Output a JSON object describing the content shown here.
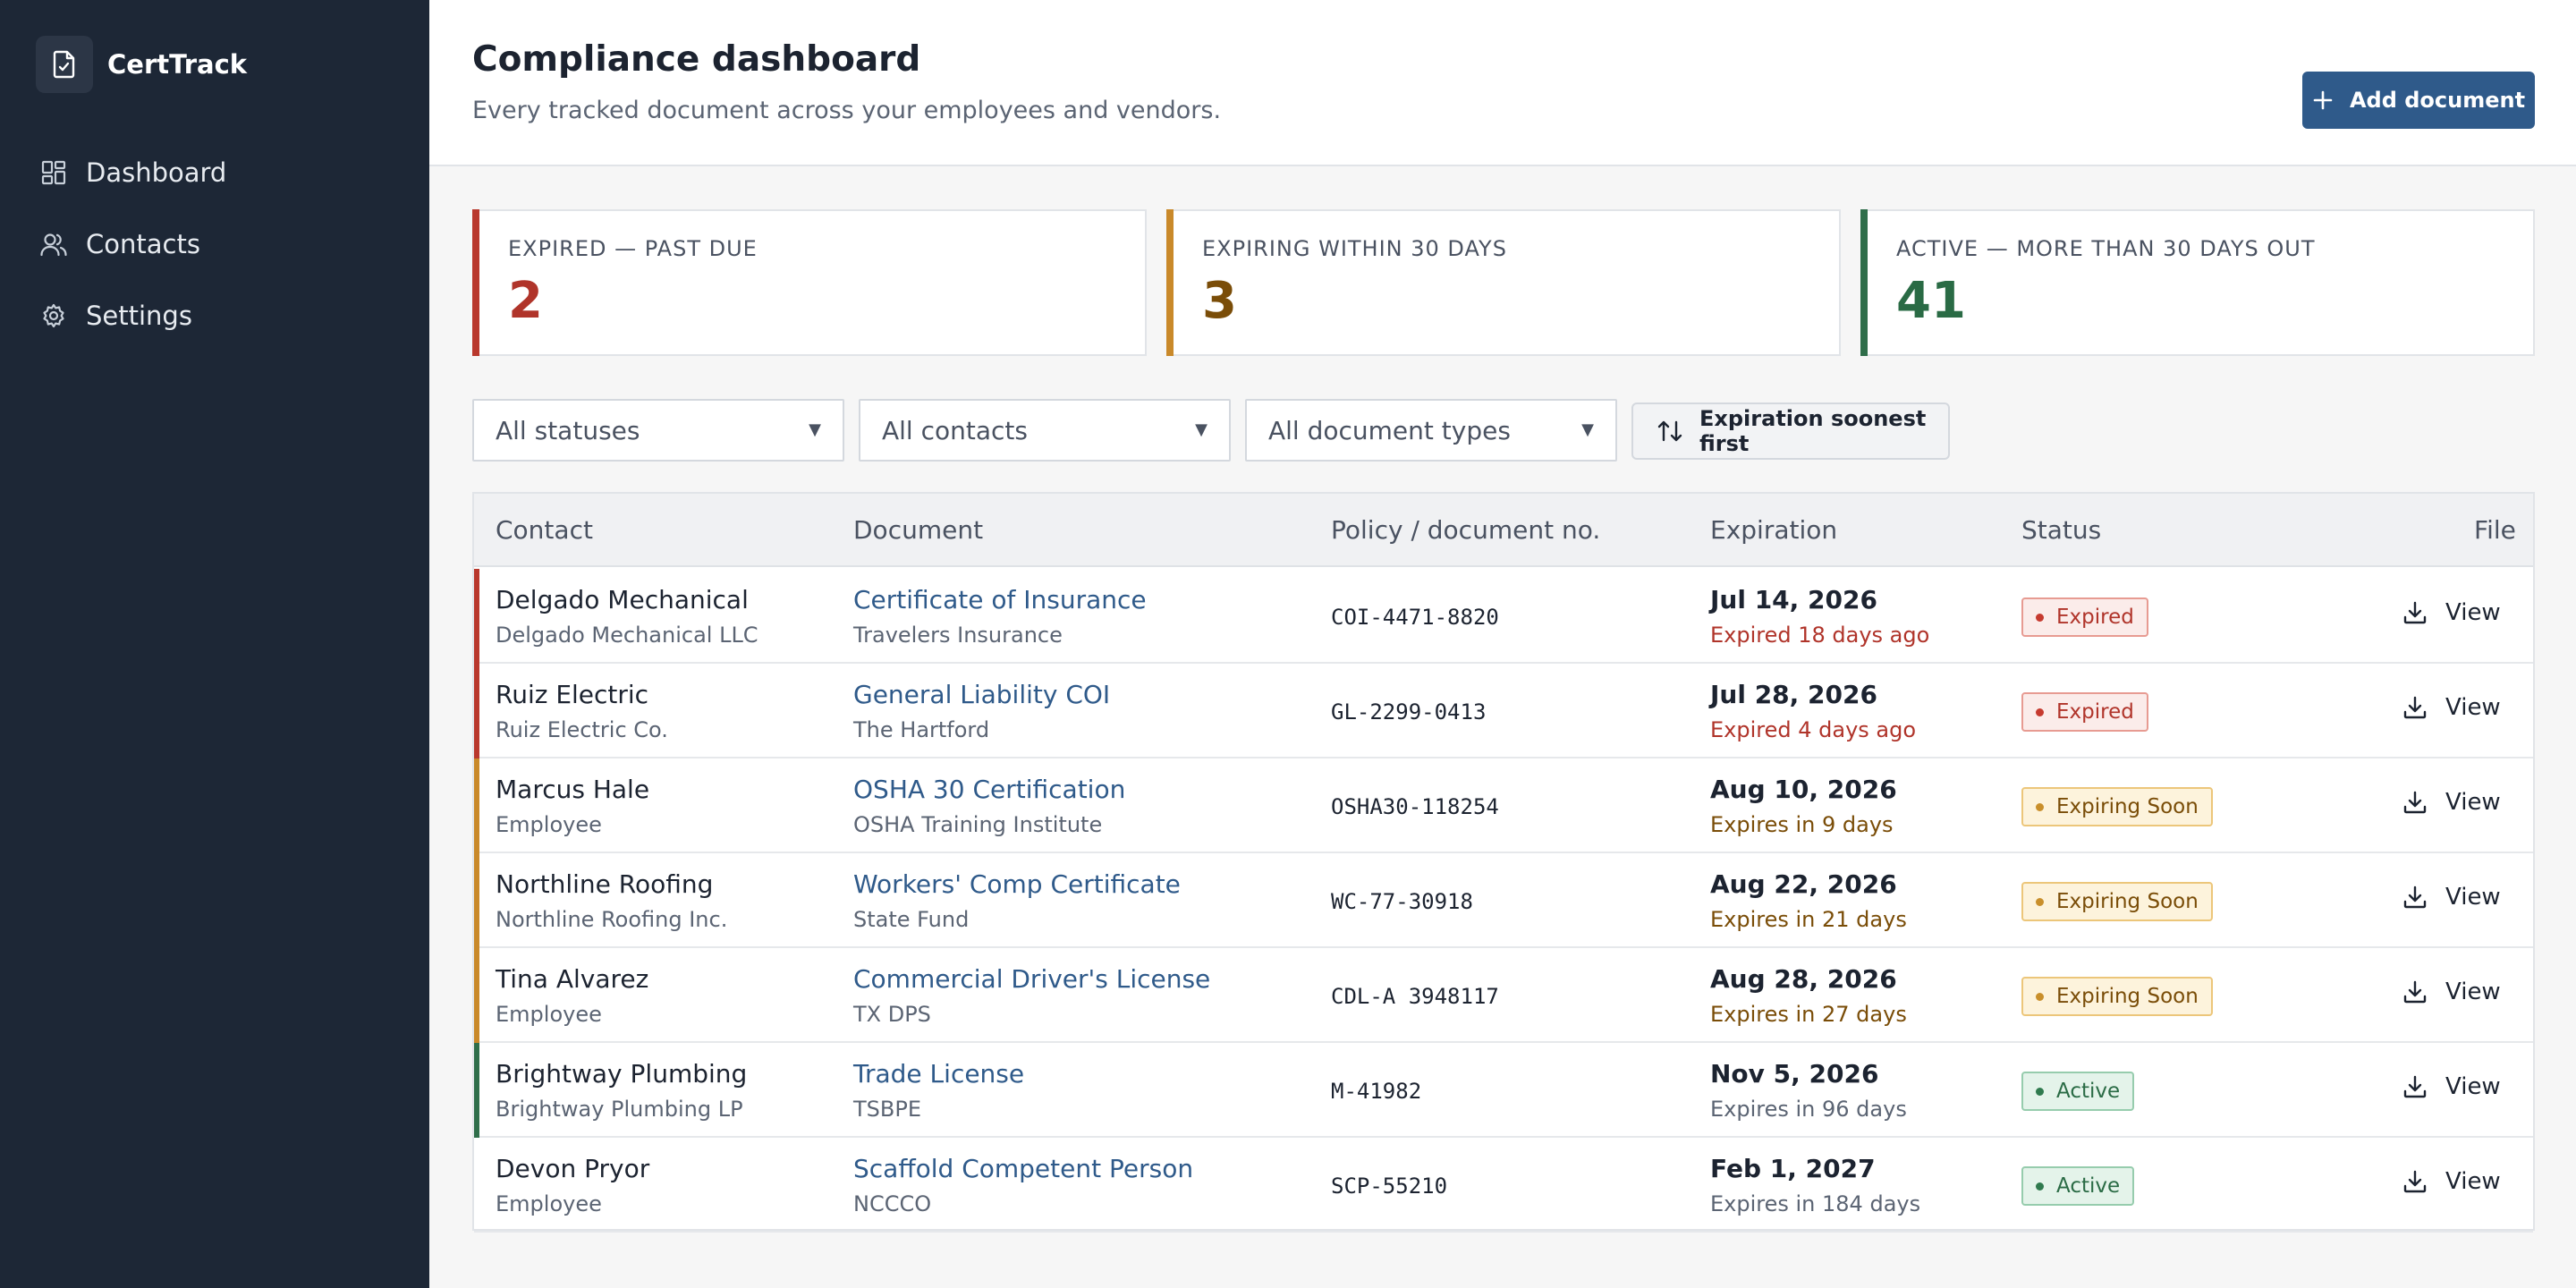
{
  "app": {
    "name": "CertTrack"
  },
  "sidebar": {
    "items": [
      {
        "label": "Dashboard",
        "icon": "dashboard-icon"
      },
      {
        "label": "Contacts",
        "icon": "contacts-icon"
      },
      {
        "label": "Settings",
        "icon": "gear-icon"
      }
    ]
  },
  "header": {
    "title": "Compliance dashboard",
    "subtitle": "Every tracked document across your employees and vendors.",
    "add_button": "Add document"
  },
  "summary": [
    {
      "label": "EXPIRED — PAST DUE",
      "value": "2",
      "color": "#b0342a"
    },
    {
      "label": "EXPIRING WITHIN 30 DAYS",
      "value": "3",
      "color": "#7a4d08"
    },
    {
      "label": "ACTIVE — MORE THAN 30 DAYS OUT",
      "value": "41",
      "color": "#2a6b45"
    }
  ],
  "filters": {
    "status": "All statuses",
    "contacts": "All contacts",
    "doc_types": "All document types",
    "sort_label": "Expiration soonest first"
  },
  "table": {
    "columns": [
      "Contact",
      "Document",
      "Policy / document no.",
      "Expiration",
      "Status",
      "File"
    ],
    "view_label": "View",
    "rows": [
      {
        "name": "Delgado Mechanical",
        "sub": "Delgado Mechanical LLC",
        "doc": "Certificate of Insurance",
        "issuer": "Travelers Insurance",
        "policy": "COI-4471-8820",
        "date": "Jul 14, 2026",
        "rel": "Expired 18 days ago",
        "status": "Expired",
        "kind": "expired"
      },
      {
        "name": "Ruiz Electric",
        "sub": "Ruiz Electric Co.",
        "doc": "General Liability COI",
        "issuer": "The Hartford",
        "policy": "GL-2299-0413",
        "date": "Jul 28, 2026",
        "rel": "Expired 4 days ago",
        "status": "Expired",
        "kind": "expired"
      },
      {
        "name": "Marcus Hale",
        "sub": "Employee",
        "doc": "OSHA 30 Certification",
        "issuer": "OSHA Training Institute",
        "policy": "OSHA30-118254",
        "date": "Aug 10, 2026",
        "rel": "Expires in 9 days",
        "status": "Expiring Soon",
        "kind": "soon"
      },
      {
        "name": "Northline Roofing",
        "sub": "Northline Roofing Inc.",
        "doc": "Workers' Comp Certificate",
        "issuer": "State Fund",
        "policy": "WC-77-30918",
        "date": "Aug 22, 2026",
        "rel": "Expires in 21 days",
        "status": "Expiring Soon",
        "kind": "soon"
      },
      {
        "name": "Tina Alvarez",
        "sub": "Employee",
        "doc": "Commercial Driver's License",
        "issuer": "TX DPS",
        "policy": "CDL-A 3948117",
        "date": "Aug 28, 2026",
        "rel": "Expires in 27 days",
        "status": "Expiring Soon",
        "kind": "soon"
      },
      {
        "name": "Brightway Plumbing",
        "sub": "Brightway Plumbing LP",
        "doc": "Trade License",
        "issuer": "TSBPE",
        "policy": "M-41982",
        "date": "Nov 5, 2026",
        "rel": "Expires in 96 days",
        "status": "Active",
        "kind": "active"
      },
      {
        "name": "Devon Pryor",
        "sub": "Employee",
        "doc": "Scaffold Competent Person",
        "issuer": "NCCCO",
        "policy": "SCP-55210",
        "date": "Feb 1, 2027",
        "rel": "Expires in 184 days",
        "status": "Active",
        "kind": "active"
      }
    ]
  },
  "colors": {
    "expired": "#c63a2f",
    "soon": "#c98f2b",
    "active": "#2f7a4e",
    "primary": "#2f5a8a"
  }
}
